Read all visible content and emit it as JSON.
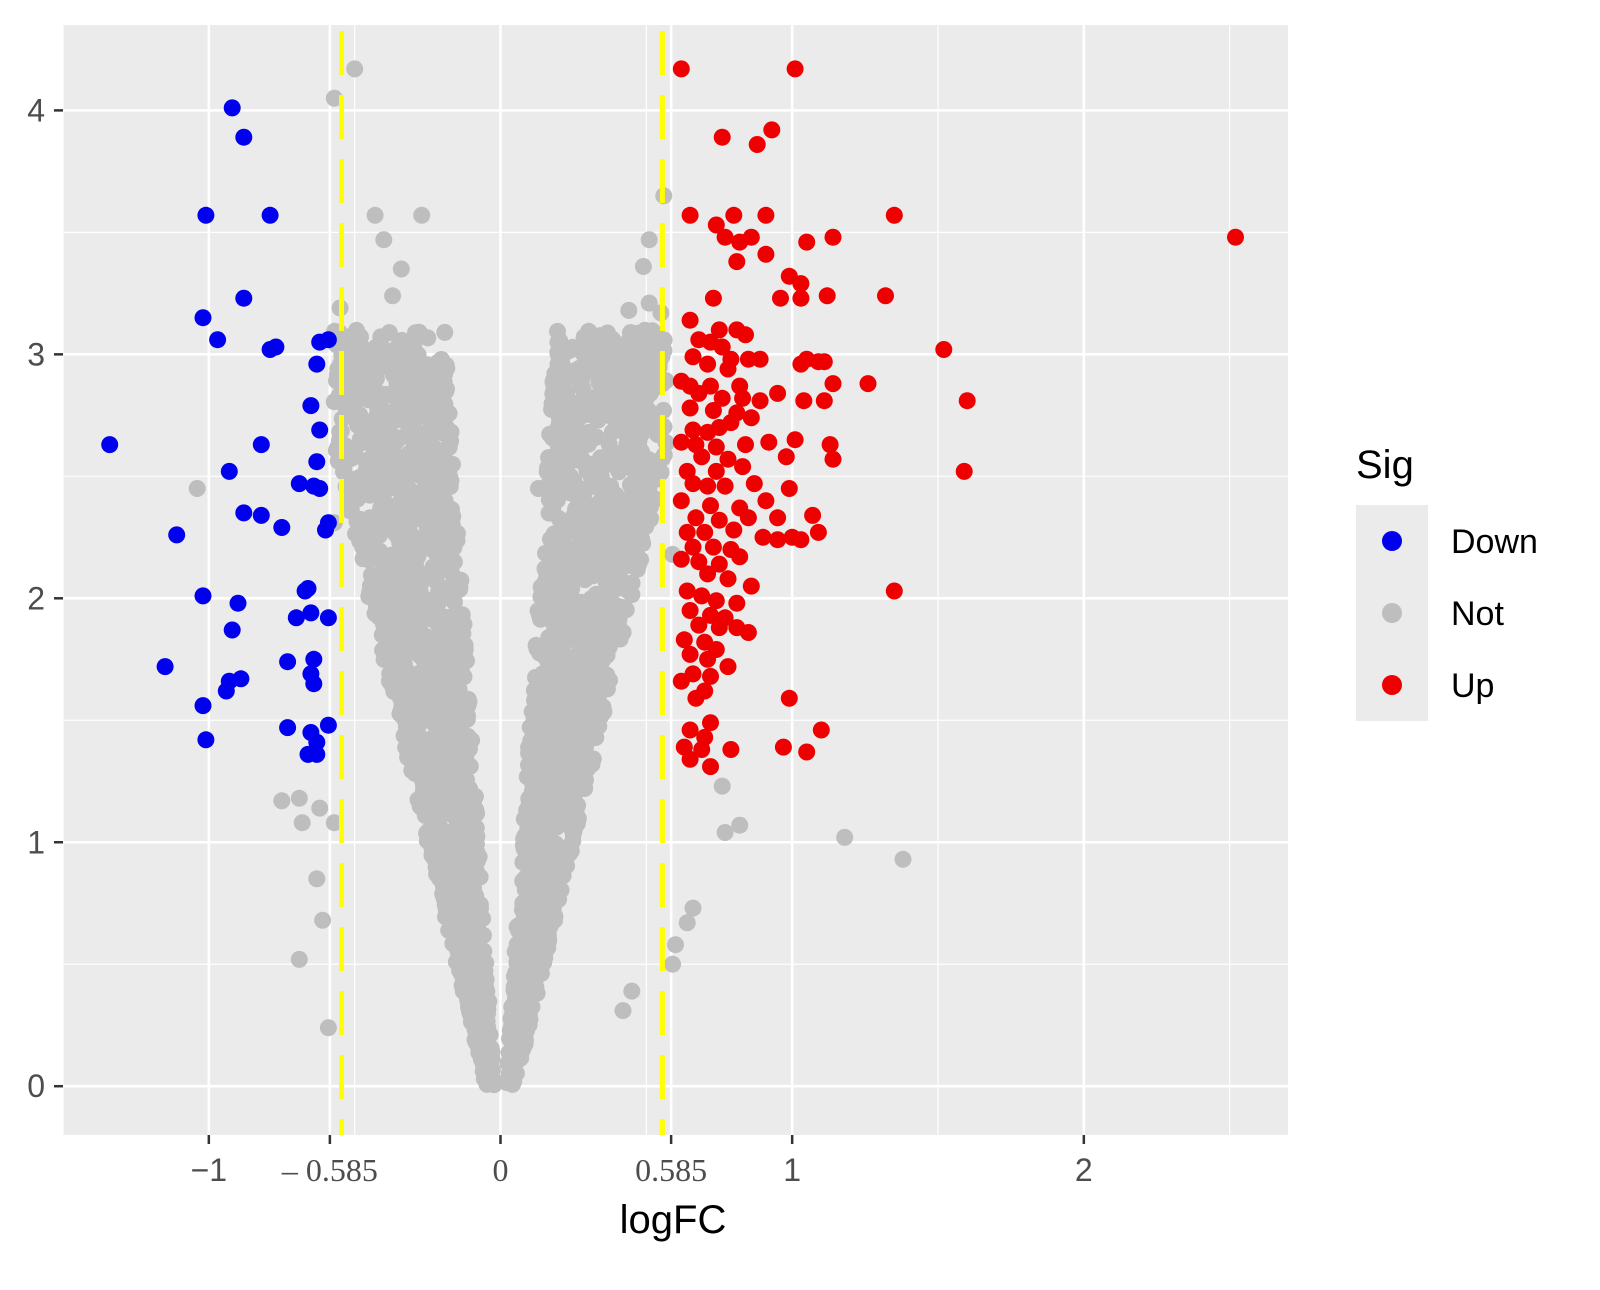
{
  "chart_data": {
    "type": "scatter",
    "title": "",
    "xlabel": "logFC",
    "ylabel": "",
    "xlim": [
      -1.5,
      2.7
    ],
    "ylim": [
      -0.2,
      4.35
    ],
    "x_ticks": [
      {
        "value": -1,
        "label": "−1",
        "font": "sans"
      },
      {
        "value": -0.585,
        "label": "– 0.585",
        "font": "serif"
      },
      {
        "value": 0,
        "label": "0",
        "font": "serif"
      },
      {
        "value": 0.585,
        "label": "0.585",
        "font": "serif"
      },
      {
        "value": 1,
        "label": "1",
        "font": "sans"
      },
      {
        "value": 2,
        "label": "2",
        "font": "sans"
      }
    ],
    "y_ticks": [
      {
        "value": 0,
        "label": "0"
      },
      {
        "value": 1,
        "label": "1"
      },
      {
        "value": 2,
        "label": "2"
      },
      {
        "value": 3,
        "label": "3"
      },
      {
        "value": 4,
        "label": "4"
      }
    ],
    "grid": true,
    "threshold_lines": {
      "x": [
        -0.545,
        0.555
      ],
      "color": "#ffff00",
      "style": "dashed"
    },
    "legend": {
      "title": "Sig",
      "position": "right",
      "entries": [
        {
          "name": "Down",
          "color": "#0000ee"
        },
        {
          "name": "Not",
          "color": "#bebebe"
        },
        {
          "name": "Up",
          "color": "#ee0000"
        }
      ]
    },
    "series": [
      {
        "name": "Down",
        "color": "#0000ee",
        "points": [
          [
            -1.34,
            2.63
          ],
          [
            -0.92,
            4.01
          ],
          [
            -0.88,
            3.89
          ],
          [
            -1.01,
            3.57
          ],
          [
            -0.79,
            3.57
          ],
          [
            -0.88,
            3.23
          ],
          [
            -1.02,
            3.15
          ],
          [
            -0.97,
            3.06
          ],
          [
            -0.79,
            3.02
          ],
          [
            -0.77,
            3.03
          ],
          [
            -0.62,
            3.05
          ],
          [
            -0.59,
            3.06
          ],
          [
            -0.63,
            2.96
          ],
          [
            -0.65,
            2.79
          ],
          [
            -0.62,
            2.69
          ],
          [
            -0.82,
            2.63
          ],
          [
            -0.93,
            2.52
          ],
          [
            -0.63,
            2.56
          ],
          [
            -0.69,
            2.47
          ],
          [
            -0.62,
            2.45
          ],
          [
            -0.64,
            2.46
          ],
          [
            -0.88,
            2.35
          ],
          [
            -0.82,
            2.34
          ],
          [
            -0.75,
            2.29
          ],
          [
            -0.59,
            2.31
          ],
          [
            -0.6,
            2.28
          ],
          [
            -1.11,
            2.26
          ],
          [
            -1.02,
            2.01
          ],
          [
            -0.9,
            1.98
          ],
          [
            -0.67,
            2.03
          ],
          [
            -0.66,
            2.04
          ],
          [
            -0.65,
            1.94
          ],
          [
            -0.7,
            1.92
          ],
          [
            -0.59,
            1.92
          ],
          [
            -0.92,
            1.87
          ],
          [
            -0.73,
            1.74
          ],
          [
            -0.64,
            1.75
          ],
          [
            -0.65,
            1.69
          ],
          [
            -1.15,
            1.72
          ],
          [
            -0.89,
            1.67
          ],
          [
            -0.93,
            1.66
          ],
          [
            -0.94,
            1.62
          ],
          [
            -1.02,
            1.56
          ],
          [
            -0.64,
            1.65
          ],
          [
            -0.73,
            1.47
          ],
          [
            -0.65,
            1.45
          ],
          [
            -0.63,
            1.41
          ],
          [
            -0.59,
            1.48
          ],
          [
            -1.01,
            1.42
          ],
          [
            -0.66,
            1.36
          ],
          [
            -0.63,
            1.36
          ]
        ]
      },
      {
        "name": "Up",
        "color": "#ee0000",
        "points": [
          [
            0.62,
            4.17
          ],
          [
            1.01,
            4.17
          ],
          [
            0.76,
            3.89
          ],
          [
            0.88,
            3.86
          ],
          [
            0.93,
            3.92
          ],
          [
            0.65,
            3.57
          ],
          [
            0.74,
            3.53
          ],
          [
            0.8,
            3.57
          ],
          [
            0.91,
            3.57
          ],
          [
            1.35,
            3.57
          ],
          [
            2.52,
            3.48
          ],
          [
            0.77,
            3.48
          ],
          [
            0.82,
            3.46
          ],
          [
            0.86,
            3.48
          ],
          [
            1.05,
            3.46
          ],
          [
            1.14,
            3.48
          ],
          [
            0.81,
            3.38
          ],
          [
            0.91,
            3.41
          ],
          [
            0.99,
            3.32
          ],
          [
            1.03,
            3.29
          ],
          [
            1.12,
            3.24
          ],
          [
            1.32,
            3.24
          ],
          [
            0.73,
            3.23
          ],
          [
            0.96,
            3.23
          ],
          [
            1.03,
            3.23
          ],
          [
            0.65,
            3.14
          ],
          [
            0.75,
            3.1
          ],
          [
            0.81,
            3.1
          ],
          [
            0.84,
            3.08
          ],
          [
            0.68,
            3.06
          ],
          [
            0.72,
            3.05
          ],
          [
            0.76,
            3.03
          ],
          [
            0.66,
            2.99
          ],
          [
            0.79,
            2.98
          ],
          [
            0.85,
            2.98
          ],
          [
            0.89,
            2.98
          ],
          [
            1.05,
            2.98
          ],
          [
            1.09,
            2.97
          ],
          [
            1.52,
            3.02
          ],
          [
            1.03,
            2.96
          ],
          [
            1.11,
            2.97
          ],
          [
            0.71,
            2.96
          ],
          [
            0.78,
            2.94
          ],
          [
            0.62,
            2.89
          ],
          [
            0.65,
            2.87
          ],
          [
            0.72,
            2.87
          ],
          [
            0.82,
            2.87
          ],
          [
            0.95,
            2.84
          ],
          [
            1.14,
            2.88
          ],
          [
            1.26,
            2.88
          ],
          [
            0.68,
            2.84
          ],
          [
            0.76,
            2.82
          ],
          [
            0.83,
            2.82
          ],
          [
            0.89,
            2.81
          ],
          [
            1.04,
            2.81
          ],
          [
            1.11,
            2.81
          ],
          [
            1.6,
            2.81
          ],
          [
            0.65,
            2.78
          ],
          [
            0.73,
            2.77
          ],
          [
            0.81,
            2.76
          ],
          [
            0.86,
            2.74
          ],
          [
            0.66,
            2.69
          ],
          [
            0.71,
            2.68
          ],
          [
            0.75,
            2.7
          ],
          [
            0.79,
            2.72
          ],
          [
            0.62,
            2.64
          ],
          [
            0.67,
            2.63
          ],
          [
            0.74,
            2.62
          ],
          [
            0.84,
            2.63
          ],
          [
            0.92,
            2.64
          ],
          [
            1.01,
            2.65
          ],
          [
            1.13,
            2.63
          ],
          [
            0.69,
            2.58
          ],
          [
            0.78,
            2.57
          ],
          [
            0.98,
            2.58
          ],
          [
            1.14,
            2.57
          ],
          [
            0.64,
            2.52
          ],
          [
            0.74,
            2.52
          ],
          [
            0.83,
            2.54
          ],
          [
            1.59,
            2.52
          ],
          [
            0.66,
            2.47
          ],
          [
            0.71,
            2.46
          ],
          [
            0.77,
            2.46
          ],
          [
            0.87,
            2.47
          ],
          [
            0.99,
            2.45
          ],
          [
            0.62,
            2.4
          ],
          [
            0.72,
            2.38
          ],
          [
            0.82,
            2.37
          ],
          [
            0.91,
            2.4
          ],
          [
            0.67,
            2.33
          ],
          [
            0.75,
            2.32
          ],
          [
            0.85,
            2.33
          ],
          [
            0.95,
            2.33
          ],
          [
            1.07,
            2.34
          ],
          [
            0.64,
            2.27
          ],
          [
            0.7,
            2.27
          ],
          [
            0.8,
            2.28
          ],
          [
            0.9,
            2.25
          ],
          [
            1.0,
            2.25
          ],
          [
            1.09,
            2.27
          ],
          [
            0.66,
            2.21
          ],
          [
            0.73,
            2.21
          ],
          [
            0.79,
            2.2
          ],
          [
            0.95,
            2.24
          ],
          [
            1.03,
            2.24
          ],
          [
            0.62,
            2.16
          ],
          [
            0.68,
            2.15
          ],
          [
            0.75,
            2.14
          ],
          [
            0.82,
            2.17
          ],
          [
            0.71,
            2.1
          ],
          [
            0.78,
            2.08
          ],
          [
            0.86,
            2.05
          ],
          [
            1.35,
            2.03
          ],
          [
            0.64,
            2.03
          ],
          [
            0.69,
            2.01
          ],
          [
            0.74,
            1.99
          ],
          [
            0.81,
            1.98
          ],
          [
            0.65,
            1.95
          ],
          [
            0.72,
            1.93
          ],
          [
            0.77,
            1.92
          ],
          [
            0.68,
            1.89
          ],
          [
            0.75,
            1.88
          ],
          [
            0.81,
            1.88
          ],
          [
            0.85,
            1.86
          ],
          [
            0.63,
            1.83
          ],
          [
            0.7,
            1.82
          ],
          [
            0.74,
            1.79
          ],
          [
            0.65,
            1.77
          ],
          [
            0.71,
            1.75
          ],
          [
            0.78,
            1.72
          ],
          [
            0.66,
            1.69
          ],
          [
            0.72,
            1.68
          ],
          [
            0.62,
            1.66
          ],
          [
            0.7,
            1.62
          ],
          [
            0.67,
            1.59
          ],
          [
            0.99,
            1.59
          ],
          [
            0.72,
            1.49
          ],
          [
            0.65,
            1.46
          ],
          [
            0.7,
            1.43
          ],
          [
            1.1,
            1.46
          ],
          [
            0.63,
            1.39
          ],
          [
            0.69,
            1.38
          ],
          [
            0.79,
            1.38
          ],
          [
            0.97,
            1.39
          ],
          [
            1.05,
            1.37
          ],
          [
            0.65,
            1.34
          ],
          [
            0.72,
            1.31
          ]
        ]
      }
    ],
    "not_significant": {
      "name": "Not",
      "color": "#bebebe",
      "notable_points": [
        [
          -0.5,
          4.17
        ],
        [
          -0.57,
          4.05
        ],
        [
          -0.43,
          3.57
        ],
        [
          -0.27,
          3.57
        ],
        [
          -0.4,
          3.47
        ],
        [
          -0.34,
          3.35
        ],
        [
          -0.37,
          3.24
        ],
        [
          -0.55,
          3.19
        ],
        [
          0.56,
          3.65
        ],
        [
          0.51,
          3.47
        ],
        [
          0.49,
          3.36
        ],
        [
          0.44,
          3.18
        ],
        [
          0.51,
          3.21
        ],
        [
          0.55,
          3.17
        ],
        [
          -1.04,
          2.45
        ],
        [
          -0.19,
          2.4
        ],
        [
          0.13,
          2.45
        ],
        [
          -0.57,
          2.31
        ],
        [
          0.59,
          2.18
        ],
        [
          -0.75,
          1.17
        ],
        [
          -0.69,
          1.18
        ],
        [
          -0.62,
          1.14
        ],
        [
          -0.68,
          1.08
        ],
        [
          -0.57,
          1.08
        ],
        [
          -0.63,
          0.85
        ],
        [
          -0.61,
          0.68
        ],
        [
          -0.69,
          0.52
        ],
        [
          -0.59,
          0.24
        ],
        [
          0.76,
          1.23
        ],
        [
          0.82,
          1.07
        ],
        [
          0.77,
          1.04
        ],
        [
          1.18,
          1.02
        ],
        [
          1.38,
          0.93
        ],
        [
          0.64,
          0.67
        ],
        [
          0.66,
          0.73
        ],
        [
          0.6,
          0.58
        ],
        [
          0.59,
          0.5
        ],
        [
          0.45,
          0.39
        ],
        [
          0.42,
          0.31
        ]
      ]
    }
  }
}
